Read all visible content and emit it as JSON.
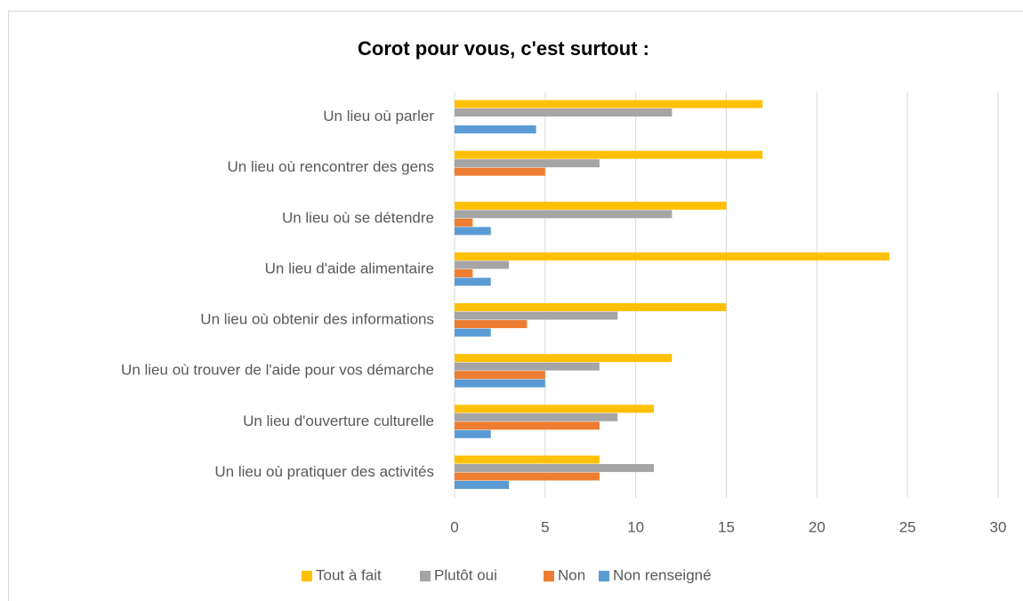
{
  "chart_data": {
    "type": "hbar",
    "title": "Corot pour vous, c'est surtout :",
    "categories": [
      "Un lieu où parler",
      "Un lieu où rencontrer des gens",
      "Un lieu où se détendre",
      "Un lieu d'aide alimentaire",
      "Un lieu où obtenir des informations",
      "Un lieu où trouver de l'aide pour vos démarche",
      "Un lieu d'ouverture culturelle",
      "Un lieu où pratiquer des activités"
    ],
    "series": [
      {
        "name": "Tout à fait",
        "color": "#FFC000",
        "values": [
          17,
          17,
          15,
          24,
          15,
          12,
          11,
          8
        ]
      },
      {
        "name": "Plutôt oui",
        "color": "#A5A5A5",
        "values": [
          12,
          8,
          12,
          3,
          9,
          8,
          9,
          11
        ]
      },
      {
        "name": "Non",
        "color": "#ED7D31",
        "values": [
          0,
          5,
          1,
          1,
          4,
          5,
          8,
          8
        ]
      },
      {
        "name": "Non renseigné",
        "color": "#5B9BD5",
        "values": [
          4.5,
          0,
          2,
          2,
          2,
          5,
          2,
          3
        ]
      }
    ],
    "xlim": [
      0,
      30
    ],
    "xticks": [
      0,
      5,
      10,
      15,
      20,
      25,
      30
    ],
    "grid": true,
    "legend": "bottom"
  }
}
